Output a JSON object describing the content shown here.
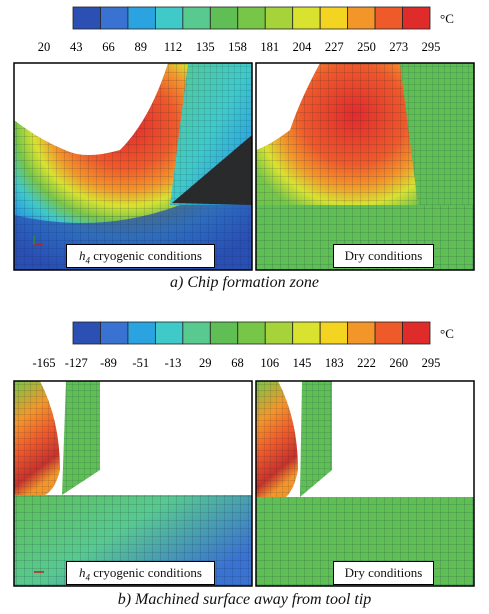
{
  "figure_a": {
    "colorbar": {
      "unit": "°C",
      "ticks": [
        "20",
        "43",
        "66",
        "89",
        "112",
        "135",
        "158",
        "181",
        "204",
        "227",
        "250",
        "273",
        "295"
      ],
      "colors": [
        "#2b4fb3",
        "#3a72d1",
        "#2aa3e0",
        "#3fc9c9",
        "#58c98f",
        "#5fbf55",
        "#77c648",
        "#a6d33a",
        "#d9e22f",
        "#f2d421",
        "#f3962a",
        "#ef5a2a",
        "#e02b2b"
      ]
    },
    "panels": [
      {
        "label_prefix": "h",
        "label_sub": "4",
        "label_text": "cryogenic conditions"
      },
      {
        "label_text": "Dry conditions"
      }
    ],
    "caption": "a) Chip formation zone"
  },
  "figure_b": {
    "colorbar": {
      "unit": "°C",
      "ticks": [
        "-165",
        "-127",
        "-89",
        "-51",
        "-13",
        "29",
        "68",
        "106",
        "145",
        "183",
        "222",
        "260",
        "295"
      ],
      "colors": [
        "#2b4fb3",
        "#3a72d1",
        "#2aa3e0",
        "#3fc9c9",
        "#58c98f",
        "#5fbf55",
        "#77c648",
        "#a6d33a",
        "#d9e22f",
        "#f2d421",
        "#f3962a",
        "#ef5a2a",
        "#e02b2b"
      ]
    },
    "panels": [
      {
        "label_prefix": "h",
        "label_sub": "4",
        "label_text": "cryogenic conditions"
      },
      {
        "label_text": "Dry conditions"
      }
    ],
    "caption": "b) Machined surface away from tool tip"
  }
}
